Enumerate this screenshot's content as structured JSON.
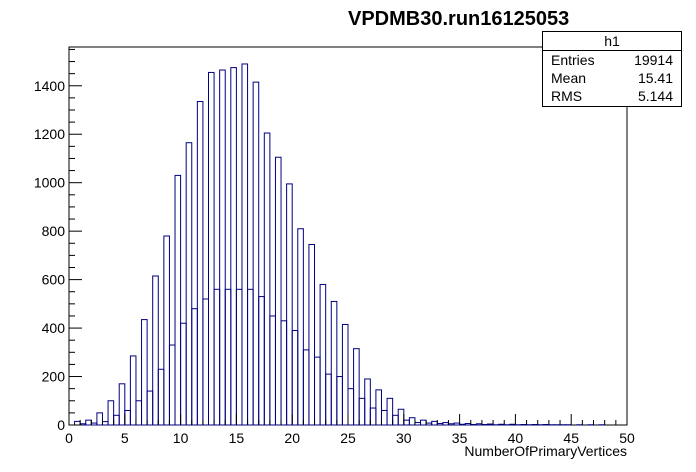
{
  "chart_data": {
    "type": "bar",
    "title": "VPDMB30.run16125053",
    "xlabel": "NumberOfPrimaryVertices",
    "ylabel": "",
    "xlim": [
      0,
      50
    ],
    "ylim": [
      0,
      1560
    ],
    "x_ticks": [
      0,
      5,
      10,
      15,
      20,
      25,
      30,
      35,
      40,
      45,
      50
    ],
    "y_ticks": [
      0,
      200,
      400,
      600,
      800,
      1000,
      1200,
      1400
    ],
    "bin_width": 0.5,
    "bin_edges_start": 0,
    "values": [
      0,
      15,
      5,
      20,
      8,
      50,
      14,
      100,
      40,
      170,
      60,
      285,
      100,
      435,
      140,
      615,
      230,
      780,
      330,
      1030,
      420,
      1165,
      480,
      1335,
      520,
      1455,
      560,
      1465,
      560,
      1475,
      560,
      1490,
      560,
      1415,
      530,
      1205,
      450,
      1105,
      430,
      995,
      390,
      810,
      310,
      745,
      280,
      580,
      210,
      510,
      200,
      415,
      150,
      315,
      110,
      190,
      70,
      145,
      60,
      110,
      40,
      65,
      20,
      30,
      10,
      20,
      8,
      15,
      6,
      10,
      5,
      8,
      3,
      6,
      2,
      5,
      2,
      4,
      1,
      3,
      1,
      3,
      1,
      2,
      1,
      2,
      1,
      2,
      1,
      1,
      1,
      1,
      0,
      1,
      0,
      1,
      0,
      1,
      0,
      0,
      0,
      0
    ],
    "stats_box": {
      "name": "h1",
      "rows": [
        {
          "label": "Entries",
          "value": "19914"
        },
        {
          "label": "Mean",
          "value": "15.41"
        },
        {
          "label": "RMS",
          "value": "5.144"
        }
      ]
    },
    "line_color": "#000080",
    "grid": false,
    "legend": "top-right"
  }
}
